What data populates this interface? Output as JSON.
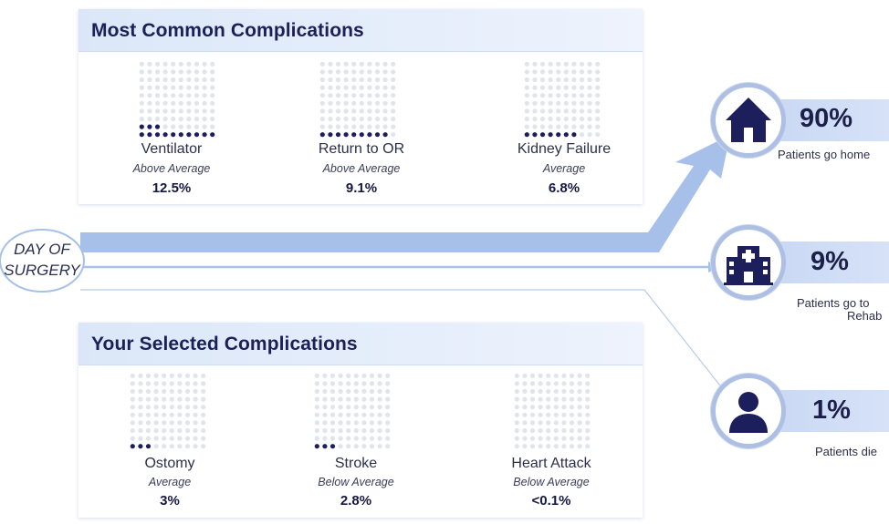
{
  "colors": {
    "dot_filled": "#1c1f5c",
    "dot_empty": "#e2e4ec",
    "flow": "#a7c0ea",
    "accent": "#1c2059"
  },
  "day_of_surgery": {
    "line1": "DAY OF",
    "line2": "SURGERY"
  },
  "common": {
    "title": "Most Common Complications",
    "items": [
      {
        "name": "Ventilator",
        "relative": "Above Average",
        "percent": "12.5%",
        "risk": 12.5
      },
      {
        "name": "Return to OR",
        "relative": "Above Average",
        "percent": "9.1%",
        "risk": 9.1
      },
      {
        "name": "Kidney Failure",
        "relative": "Average",
        "percent": "6.8%",
        "risk": 6.8
      }
    ]
  },
  "selected": {
    "title": "Your Selected Complications",
    "items": [
      {
        "name": "Ostomy",
        "relative": "Average",
        "percent": "3%",
        "risk": 3
      },
      {
        "name": "Stroke",
        "relative": "Below Average",
        "percent": "2.8%",
        "risk": 2.8
      },
      {
        "name": "Heart Attack",
        "relative": "Below Average",
        "percent": "<0.1%",
        "risk": 0.1
      }
    ]
  },
  "outcomes": [
    {
      "icon": "house-icon",
      "percent": "90%",
      "line1": "Patients go home",
      "line2": ""
    },
    {
      "icon": "hospital-icon",
      "percent": "9%",
      "line1": "Patients go to",
      "line2": "Rehab"
    },
    {
      "icon": "person-icon",
      "percent": "1%",
      "line1": "Patients die",
      "line2": ""
    }
  ]
}
